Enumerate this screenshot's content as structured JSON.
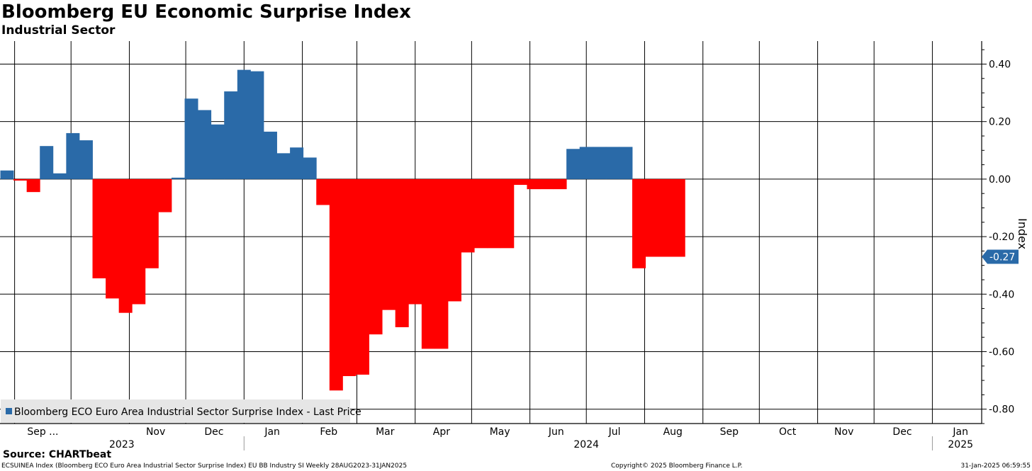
{
  "header": {
    "title": "Bloomberg EU Economic Surprise Index",
    "subtitle": "Industrial Sector"
  },
  "footer": {
    "source": "Source: CHARTbeat",
    "left": "ECSUINEA Index (Bloomberg ECO Euro Area Industrial Sector Surprise Index) EU BB Industry SI  Weekly 28AUG2023-31JAN2025",
    "center": "Copyright© 2025 Bloomberg Finance L.P.",
    "right": "31-Jan-2025 06:59:55"
  },
  "chart_data": {
    "type": "bar",
    "frequency": "weekly",
    "x_range": [
      "2023-08-28",
      "2025-01-31"
    ],
    "x_start": "2023-08-28",
    "ylabel": "Index",
    "ylim": [
      -0.85,
      0.48
    ],
    "yticks": [
      -0.8,
      -0.6,
      -0.4,
      -0.2,
      0.0,
      0.2,
      0.4
    ],
    "ytick_labels": [
      "-0.80",
      "-0.60",
      "-0.40",
      "-0.20",
      "0.00",
      "0.20",
      "0.40"
    ],
    "grid": true,
    "legend": {
      "position": "bottom-left",
      "label": "Bloomberg ECO Euro Area Industrial Sector Surprise Index - Last Price"
    },
    "last_value": -0.27,
    "last_value_label": "-0.27",
    "colors": {
      "positive": "#2a6aa8",
      "negative": "#ff0000",
      "axis": "#000000",
      "last_value_badge": "#2a6aa8"
    },
    "month_labels": [
      {
        "label": "Sep ...",
        "date": "2023-09-16"
      },
      {
        "label": "Nov",
        "date": "2023-11-15"
      },
      {
        "label": "Dec",
        "date": "2023-12-16"
      },
      {
        "label": "Jan",
        "date": "2024-01-16"
      },
      {
        "label": "Feb",
        "date": "2024-02-15"
      },
      {
        "label": "Mar",
        "date": "2024-03-16"
      },
      {
        "label": "Apr",
        "date": "2024-04-15"
      },
      {
        "label": "May",
        "date": "2024-05-16"
      },
      {
        "label": "Jun",
        "date": "2024-06-15"
      },
      {
        "label": "Jul",
        "date": "2024-07-16"
      },
      {
        "label": "Aug",
        "date": "2024-08-16"
      },
      {
        "label": "Sep",
        "date": "2024-09-15"
      },
      {
        "label": "Oct",
        "date": "2024-10-16"
      },
      {
        "label": "Nov",
        "date": "2024-11-15"
      },
      {
        "label": "Dec",
        "date": "2024-12-16"
      },
      {
        "label": "Jan",
        "date": "2025-01-16"
      }
    ],
    "year_labels": [
      {
        "label": "2023",
        "date": "2023-10-28"
      },
      {
        "label": "2024",
        "date": "2024-07-01"
      },
      {
        "label": "2025",
        "date": "2025-01-16"
      }
    ],
    "bars": [
      {
        "date": "2023-08-28",
        "value": 0.03
      },
      {
        "date": "2023-09-04",
        "value": -0.005
      },
      {
        "date": "2023-09-11",
        "value": -0.045
      },
      {
        "date": "2023-09-18",
        "value": 0.115
      },
      {
        "date": "2023-09-25",
        "value": 0.02
      },
      {
        "date": "2023-10-02",
        "value": 0.16
      },
      {
        "date": "2023-10-09",
        "value": 0.135
      },
      {
        "date": "2023-10-16",
        "value": -0.345
      },
      {
        "date": "2023-10-23",
        "value": -0.415
      },
      {
        "date": "2023-10-30",
        "value": -0.465
      },
      {
        "date": "2023-11-06",
        "value": -0.435
      },
      {
        "date": "2023-11-13",
        "value": -0.31
      },
      {
        "date": "2023-11-20",
        "value": -0.115
      },
      {
        "date": "2023-11-27",
        "value": 0.005
      },
      {
        "date": "2023-12-04",
        "value": 0.28
      },
      {
        "date": "2023-12-11",
        "value": 0.24
      },
      {
        "date": "2023-12-18",
        "value": 0.19
      },
      {
        "date": "2023-12-25",
        "value": 0.305
      },
      {
        "date": "2024-01-01",
        "value": 0.38
      },
      {
        "date": "2024-01-08",
        "value": 0.375
      },
      {
        "date": "2024-01-15",
        "value": 0.165
      },
      {
        "date": "2024-01-22",
        "value": 0.09
      },
      {
        "date": "2024-01-29",
        "value": 0.11
      },
      {
        "date": "2024-02-05",
        "value": 0.075
      },
      {
        "date": "2024-02-12",
        "value": -0.09
      },
      {
        "date": "2024-02-19",
        "value": -0.735
      },
      {
        "date": "2024-02-26",
        "value": -0.685
      },
      {
        "date": "2024-03-04",
        "value": -0.68
      },
      {
        "date": "2024-03-11",
        "value": -0.54
      },
      {
        "date": "2024-03-18",
        "value": -0.455
      },
      {
        "date": "2024-03-25",
        "value": -0.515
      },
      {
        "date": "2024-04-01",
        "value": -0.435
      },
      {
        "date": "2024-04-08",
        "value": -0.59
      },
      {
        "date": "2024-04-15",
        "value": -0.59
      },
      {
        "date": "2024-04-22",
        "value": -0.425
      },
      {
        "date": "2024-04-29",
        "value": -0.255
      },
      {
        "date": "2024-05-06",
        "value": -0.24
      },
      {
        "date": "2024-05-13",
        "value": -0.24
      },
      {
        "date": "2024-05-20",
        "value": -0.24
      },
      {
        "date": "2024-05-27",
        "value": -0.02
      },
      {
        "date": "2024-06-03",
        "value": -0.035
      },
      {
        "date": "2024-06-10",
        "value": -0.035
      },
      {
        "date": "2024-06-17",
        "value": -0.035
      },
      {
        "date": "2024-06-24",
        "value": 0.105
      },
      {
        "date": "2024-07-01",
        "value": 0.112
      },
      {
        "date": "2024-07-08",
        "value": 0.112
      },
      {
        "date": "2024-07-15",
        "value": 0.112
      },
      {
        "date": "2024-07-22",
        "value": 0.112
      },
      {
        "date": "2024-07-29",
        "value": -0.31
      },
      {
        "date": "2024-08-05",
        "value": -0.27
      },
      {
        "date": "2024-08-12",
        "value": -0.27
      },
      {
        "date": "2024-08-19",
        "value": -0.27
      }
    ]
  }
}
